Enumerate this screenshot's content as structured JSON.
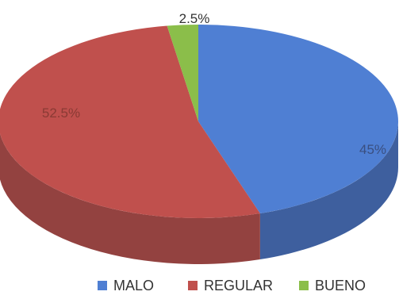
{
  "chart_data": {
    "type": "pie",
    "style": "3d-exploded-none",
    "categories": [
      "MALO",
      "REGULAR",
      "BUENO"
    ],
    "values": [
      45,
      52.5,
      2.5
    ],
    "data_labels": [
      "45%",
      "52.5%",
      "2.5%"
    ],
    "colors": [
      "#4F7FD3",
      "#C0504D",
      "#8BBE4A"
    ],
    "side_colors": [
      "#3E5F9E",
      "#934240",
      "#6A9038"
    ],
    "label_colors": [
      "#3A4F80",
      "#8A3A34",
      "#333333"
    ],
    "legend_position": "bottom",
    "title": ""
  }
}
